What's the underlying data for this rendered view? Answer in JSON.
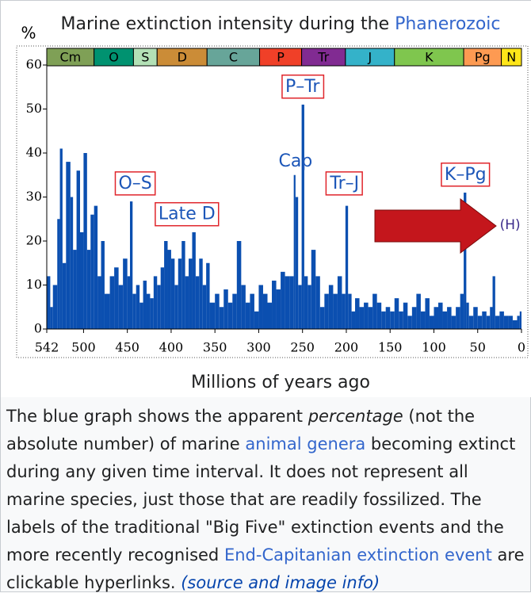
{
  "chart_data": {
    "type": "bar",
    "title": [
      "Marine extinction intensity during the ",
      "Phanerozoic"
    ],
    "ylabel": "%",
    "xlabel": "Millions of years ago",
    "color": "#0b4fb0",
    "xlim": [
      542,
      0
    ],
    "xticks": [
      542,
      500,
      450,
      400,
      350,
      300,
      250,
      200,
      150,
      100,
      50,
      0
    ],
    "ylim": [
      0,
      60
    ],
    "yticks": [
      0,
      10,
      20,
      30,
      40,
      50,
      60
    ],
    "periods": [
      {
        "name": "Cm",
        "start": 542,
        "end": 488,
        "color": "#7fa056"
      },
      {
        "name": "O",
        "start": 488,
        "end": 443,
        "color": "#009270"
      },
      {
        "name": "S",
        "start": 443,
        "end": 416,
        "color": "#b3e1b6"
      },
      {
        "name": "D",
        "start": 416,
        "end": 359,
        "color": "#cb8c37"
      },
      {
        "name": "C",
        "start": 359,
        "end": 299,
        "color": "#67a599"
      },
      {
        "name": "P",
        "start": 299,
        "end": 251,
        "color": "#f04028"
      },
      {
        "name": "Tr",
        "start": 251,
        "end": 201,
        "color": "#812b92"
      },
      {
        "name": "J",
        "start": 201,
        "end": 145,
        "color": "#34b2c9"
      },
      {
        "name": "K",
        "start": 145,
        "end": 66,
        "color": "#7fc64e"
      },
      {
        "name": "Pg",
        "start": 66,
        "end": 23,
        "color": "#fd9a52"
      },
      {
        "name": "N",
        "start": 23,
        "end": 0,
        "color": "#ffe619"
      }
    ],
    "x": [
      542,
      538,
      535,
      530,
      527,
      524,
      520,
      515,
      512,
      508,
      504,
      500,
      496,
      492,
      488,
      484,
      480,
      476,
      470,
      465,
      460,
      455,
      450,
      447,
      444,
      440,
      436,
      432,
      428,
      424,
      420,
      416,
      412,
      408,
      404,
      400,
      396,
      392,
      388,
      384,
      380,
      376,
      372,
      368,
      364,
      360,
      356,
      350,
      345,
      340,
      335,
      330,
      325,
      320,
      315,
      310,
      305,
      300,
      295,
      290,
      285,
      280,
      275,
      270,
      265,
      260,
      258,
      255,
      251,
      248,
      244,
      240,
      235,
      230,
      225,
      220,
      215,
      210,
      205,
      201,
      198,
      194,
      190,
      185,
      180,
      175,
      170,
      165,
      160,
      155,
      150,
      145,
      140,
      135,
      130,
      125,
      120,
      115,
      110,
      105,
      100,
      95,
      90,
      85,
      80,
      75,
      70,
      66,
      63,
      60,
      55,
      50,
      45,
      40,
      36,
      33,
      30,
      25,
      20,
      15,
      10,
      5,
      2
    ],
    "values": [
      12,
      5,
      10,
      25,
      41,
      15,
      38,
      30,
      18,
      36,
      22,
      40,
      18,
      26,
      28,
      12,
      20,
      8,
      12,
      14,
      10,
      16,
      12,
      29,
      8,
      10,
      6,
      11,
      8,
      7,
      12,
      10,
      14,
      20,
      18,
      16,
      10,
      16,
      20,
      12,
      16,
      22,
      12,
      16,
      10,
      15,
      6,
      8,
      5,
      9,
      6,
      8,
      20,
      10,
      6,
      8,
      4,
      10,
      8,
      6,
      11,
      9,
      13,
      12,
      12,
      35,
      30,
      10,
      51,
      12,
      10,
      18,
      12,
      5,
      8,
      10,
      8,
      12,
      8,
      28,
      8,
      4,
      7,
      5,
      6,
      5,
      8,
      6,
      4,
      5,
      4,
      7,
      4,
      6,
      3,
      5,
      8,
      4,
      7,
      3,
      5,
      6,
      4,
      5,
      3,
      5,
      8,
      31,
      6,
      3,
      5,
      3,
      4,
      3,
      5,
      12,
      3,
      4,
      3,
      3,
      2,
      3,
      4
    ],
    "annotations": [
      {
        "text": "O–S",
        "x": 441,
        "y": 33,
        "boxed": true
      },
      {
        "text": "Late D",
        "x": 382,
        "y": 26,
        "boxed": true
      },
      {
        "text": "Cap",
        "x": 258,
        "y": 38,
        "boxed": false
      },
      {
        "text": "P–Tr",
        "x": 250,
        "y": 55,
        "boxed": true
      },
      {
        "text": "Tr–J",
        "x": 202,
        "y": 33,
        "boxed": true
      },
      {
        "text": "K–Pg",
        "x": 64,
        "y": 35,
        "boxed": true
      },
      {
        "text": "(H)",
        "x": 13,
        "y": 23.6,
        "boxed": false
      }
    ]
  },
  "caption": [
    "The blue graph shows the apparent ",
    "percentage",
    " (not the absolute number) of marine ",
    "animal genera",
    " becoming extinct during any given time interval. It does not represent all marine species, just those that are readily fossilized. The labels of the traditional \"Big Five\" extinction events and the more recently recognised ",
    "End-Capitanian extinction event",
    " are clickable hyperlinks. ",
    "(source and image info)"
  ]
}
